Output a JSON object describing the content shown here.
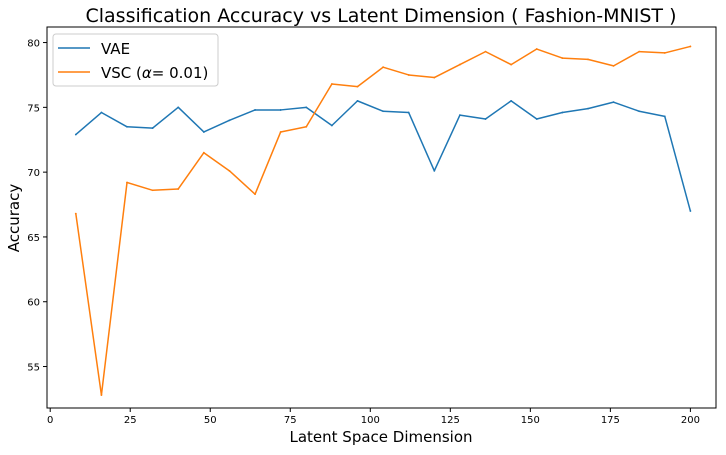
{
  "chart_data": {
    "type": "line",
    "title": "Classification Accuracy vs Latent Dimension ( Fashion-MNIST )",
    "xlabel": "Latent Space Dimension",
    "ylabel": "Accuracy",
    "xlim": [
      -1,
      208
    ],
    "ylim": [
      51.8,
      81.2
    ],
    "xticks": [
      0,
      25,
      50,
      75,
      100,
      125,
      150,
      175,
      200
    ],
    "yticks": [
      55,
      60,
      65,
      70,
      75,
      80
    ],
    "grid": false,
    "legend": "top-left",
    "x": [
      8,
      16,
      24,
      32,
      40,
      48,
      56,
      64,
      72,
      80,
      88,
      96,
      104,
      112,
      120,
      128,
      136,
      144,
      152,
      160,
      168,
      176,
      184,
      192,
      200
    ],
    "series": [
      {
        "name": "VAE",
        "legend_prefix": "VAE",
        "legend_symbol": "",
        "legend_suffix": "",
        "color": "#1f77b4",
        "values": [
          72.9,
          74.6,
          73.5,
          73.4,
          75.0,
          73.1,
          74.0,
          74.8,
          74.8,
          75.0,
          73.6,
          75.5,
          74.7,
          74.6,
          70.1,
          74.4,
          74.1,
          75.5,
          74.1,
          74.6,
          74.9,
          75.4,
          74.7,
          74.3,
          67.0
        ]
      },
      {
        "name": "VSC (α= 0.01)",
        "legend_prefix": "VSC (",
        "legend_symbol": "α",
        "legend_suffix": "= 0.01)",
        "color": "#ff7f0e",
        "values": [
          66.8,
          52.8,
          69.2,
          68.6,
          68.7,
          71.5,
          70.1,
          68.3,
          73.1,
          73.5,
          76.8,
          76.6,
          78.1,
          77.5,
          77.3,
          78.3,
          79.3,
          78.3,
          79.5,
          78.8,
          78.7,
          78.2,
          79.3,
          79.2,
          79.7
        ]
      }
    ]
  }
}
